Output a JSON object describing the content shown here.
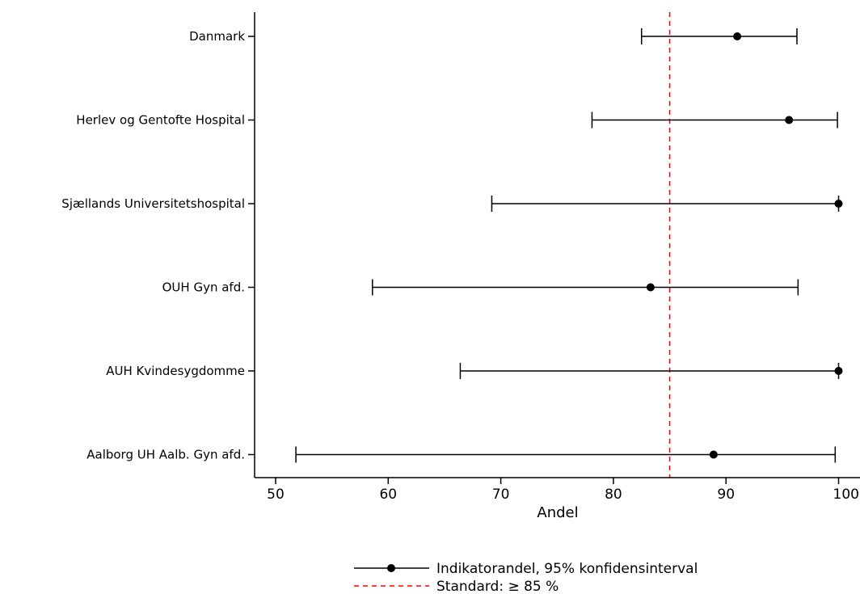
{
  "chart_data": {
    "type": "scatter",
    "orientation": "horizontal",
    "xlabel": "Andel",
    "xlim": [
      48.5,
      101
    ],
    "xticks": [
      50,
      60,
      70,
      80,
      90,
      100
    ],
    "xtick_labels": [
      "50",
      "60",
      "70",
      "80",
      "90",
      "100"
    ],
    "grid": false,
    "categories": [
      "Danmark",
      "Herlev og Gentofte Hospital",
      "Sjællands Universitetshospital",
      "OUH Gyn afd.",
      "AUH Kvindesygdomme",
      "Aalborg UH Aalb. Gyn afd."
    ],
    "series": [
      {
        "name": "Indikatorandel, 95% konfidensinterval",
        "color": "#000000",
        "values": [
          91.0,
          95.6,
          100.0,
          83.3,
          100.0,
          88.9
        ],
        "lower": [
          82.5,
          78.1,
          69.2,
          58.6,
          66.4,
          51.8
        ],
        "upper": [
          96.3,
          99.9,
          100.0,
          96.4,
          100.0,
          99.7
        ]
      }
    ],
    "reference_line": {
      "name": "Standard: ≥ 85 %",
      "value": 85,
      "color": "#ff0000",
      "style": "dashed"
    },
    "legend": {
      "position": "bottom",
      "entries": [
        "Indikatorandel, 95% konfidensinterval",
        "Standard: ≥ 85 %"
      ]
    }
  }
}
